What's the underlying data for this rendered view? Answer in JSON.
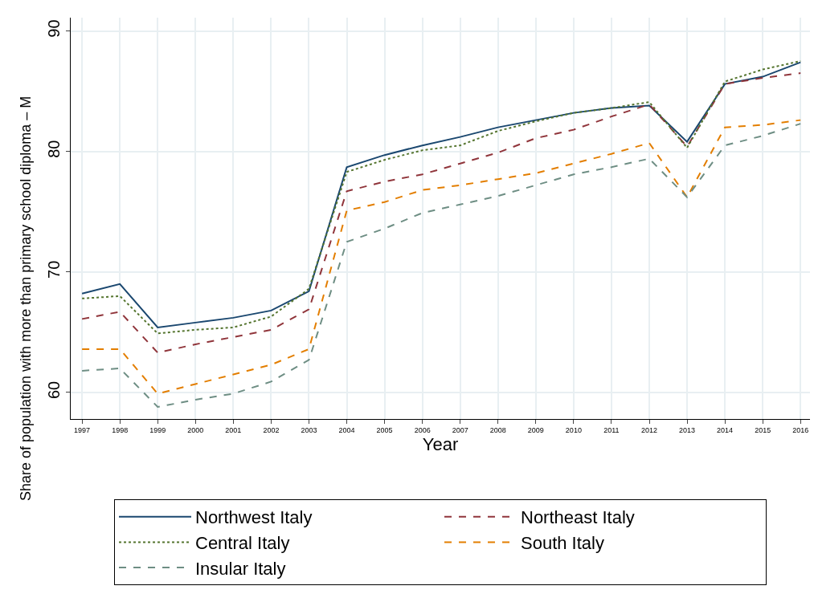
{
  "chart_data": {
    "type": "line",
    "xlabel": "Year",
    "ylabel": "Share of population with more than primary school diploma – M",
    "x": [
      1997,
      1998,
      1999,
      2000,
      2001,
      2002,
      2003,
      2004,
      2005,
      2006,
      2007,
      2008,
      2009,
      2010,
      2011,
      2012,
      2013,
      2014,
      2015,
      2016
    ],
    "xlim": [
      1996.7,
      2016.25
    ],
    "xticks": [
      1997,
      1998,
      1999,
      2000,
      2001,
      2002,
      2003,
      2004,
      2005,
      2006,
      2007,
      2008,
      2009,
      2010,
      2011,
      2012,
      2013,
      2014,
      2015,
      2016
    ],
    "ylim": [
      57.8,
      91.1
    ],
    "yticks": [
      60,
      70,
      80,
      90
    ],
    "grid": true,
    "legend": "bottom",
    "marker": "none",
    "series": [
      {
        "name": "Northwest Italy",
        "color": "#1a476f",
        "line_style": "solid",
        "values": [
          68.2,
          69.0,
          65.4,
          65.8,
          66.2,
          66.8,
          68.4,
          78.7,
          79.7,
          80.5,
          81.2,
          82.0,
          82.6,
          83.2,
          83.6,
          83.8,
          80.8,
          85.6,
          86.2,
          87.4
        ]
      },
      {
        "name": "Northeast Italy",
        "color": "#90353b",
        "line_style": "dashed",
        "values": [
          66.1,
          66.7,
          63.3,
          64.0,
          64.6,
          65.2,
          66.9,
          76.7,
          77.5,
          78.1,
          79.0,
          79.9,
          81.1,
          81.8,
          82.9,
          83.9,
          80.4,
          85.6,
          86.1,
          86.5
        ]
      },
      {
        "name": "Central Italy",
        "color": "#55752f",
        "line_style": "dotted",
        "values": [
          67.8,
          68.0,
          64.9,
          65.2,
          65.4,
          66.3,
          68.6,
          78.3,
          79.3,
          80.1,
          80.5,
          81.7,
          82.5,
          83.2,
          83.6,
          84.1,
          80.3,
          85.8,
          86.8,
          87.5
        ]
      },
      {
        "name": "South Italy",
        "color": "#e37e00",
        "line_style": "dashed",
        "values": [
          63.6,
          63.6,
          59.9,
          60.7,
          61.5,
          62.3,
          63.6,
          75.1,
          75.8,
          76.8,
          77.2,
          77.7,
          78.2,
          79.0,
          79.8,
          80.7,
          76.2,
          82.0,
          82.2,
          82.6
        ]
      },
      {
        "name": "Insular Italy",
        "color": "#6e8e84",
        "line_style": "dashed",
        "values": [
          61.8,
          62.0,
          58.8,
          59.4,
          59.9,
          60.9,
          62.7,
          72.5,
          73.6,
          74.9,
          75.6,
          76.3,
          77.2,
          78.1,
          78.7,
          79.4,
          76.2,
          80.5,
          81.3,
          82.3
        ]
      }
    ]
  }
}
